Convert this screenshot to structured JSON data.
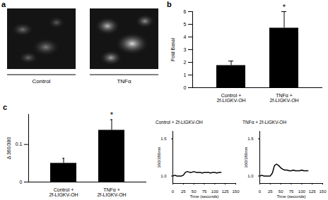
{
  "chart_data": [
    {
      "type": "image",
      "title": "a",
      "categories": [
        "Control",
        "TNFα"
      ]
    },
    {
      "type": "bar",
      "title": "b",
      "ylabel": "Fold Basal",
      "categories": [
        "Control +\n2f-LIGKV-OH",
        "TNFα +\n2f-LIGKV-OH"
      ],
      "values": [
        1.75,
        4.7
      ],
      "errors": [
        0.35,
        1.3
      ],
      "color": "#000000",
      "ylim": [
        0,
        6
      ],
      "yticks": [
        0,
        1,
        2,
        3,
        4,
        5,
        6
      ],
      "annotations": [
        {
          "text": "*",
          "x": "TNFα +\n2f-LIGKV-OH"
        }
      ]
    },
    {
      "type": "bar",
      "title": "c",
      "ylabel": "Δ 360/380",
      "categories": [
        "Control +\n2f-LIGKV-OH",
        "TNFα +\n2f-LIGKV-OH"
      ],
      "values": [
        0.05,
        0.138
      ],
      "errors": [
        0.013,
        0.028
      ],
      "color": "#000000",
      "ylim": [
        0,
        0.18
      ],
      "yticks": [
        0,
        0.1
      ],
      "annotations": [
        {
          "text": "*",
          "x": "TNFα +\n2f-LIGKV-OH"
        }
      ]
    },
    {
      "type": "line",
      "title": "Control + 2f-LIGKV-OH",
      "xlabel": "Time (seconds)",
      "ylabel": "360/380nm",
      "x": [
        0,
        5,
        10,
        15,
        20,
        25,
        30,
        35,
        40,
        45,
        50,
        55,
        60,
        65,
        70,
        75,
        80,
        85,
        90,
        95,
        100,
        105,
        110,
        115
      ],
      "values": [
        1.0,
        1.01,
        1.0,
        1.0,
        1.0,
        1.01,
        1.05,
        1.06,
        1.05,
        1.05,
        1.06,
        1.05,
        1.05,
        1.05,
        1.04,
        1.05,
        1.05,
        1.05,
        1.04,
        1.05,
        1.05,
        1.04,
        1.05,
        1.05
      ],
      "color": "#000000",
      "xlim": [
        0,
        150
      ],
      "xticks": [
        0,
        25,
        50,
        75,
        100,
        125,
        150
      ],
      "ylim": [
        0.9,
        1.6
      ],
      "yticks": [
        {
          "value": 1,
          "label": "1.0"
        },
        {
          "value": 1.5,
          "label": "1.5"
        }
      ]
    },
    {
      "type": "line",
      "title": "TNFα + 2f-LIGKV-OH",
      "xlabel": "Time (seconds)",
      "ylabel": "360/380nm",
      "x": [
        0,
        5,
        10,
        15,
        20,
        25,
        30,
        35,
        40,
        45,
        50,
        55,
        60,
        65,
        70,
        75,
        80,
        85,
        90,
        95,
        100,
        105,
        110,
        115
      ],
      "values": [
        1.0,
        1.01,
        1.0,
        1.0,
        1.0,
        1.0,
        1.04,
        1.14,
        1.16,
        1.14,
        1.11,
        1.09,
        1.08,
        1.08,
        1.07,
        1.07,
        1.08,
        1.07,
        1.07,
        1.07,
        1.08,
        1.07,
        1.07,
        1.07
      ],
      "color": "#000000",
      "xlim": [
        0,
        150
      ],
      "xticks": [
        0,
        25,
        50,
        75,
        100,
        125,
        150
      ],
      "ylim": [
        0.9,
        1.6
      ],
      "yticks": [
        {
          "value": 1,
          "label": "1.0"
        },
        {
          "value": 1.5,
          "label": "1.5"
        }
      ]
    }
  ]
}
